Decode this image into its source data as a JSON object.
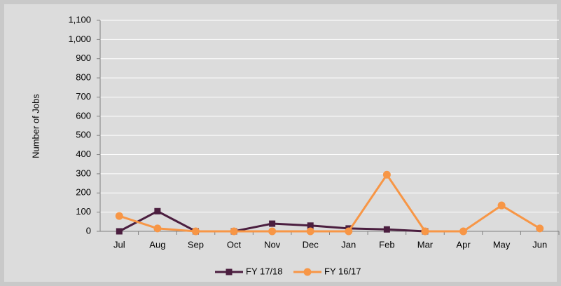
{
  "chart_data": {
    "type": "line",
    "y_label": "Number of Jobs",
    "categories": [
      "Jul",
      "Aug",
      "Sep",
      "Oct",
      "Nov",
      "Dec",
      "Jan",
      "Feb",
      "Mar",
      "Apr",
      "May",
      "Jun"
    ],
    "series": [
      {
        "name": "FY 17/18",
        "color": "#4b1e3f",
        "marker": "square",
        "values": [
          0,
          105,
          0,
          0,
          40,
          30,
          15,
          10,
          0,
          null,
          null,
          null
        ]
      },
      {
        "name": "FY 16/17",
        "color": "#f79646",
        "marker": "circle",
        "values": [
          80,
          15,
          0,
          0,
          0,
          0,
          0,
          295,
          0,
          0,
          135,
          15
        ]
      }
    ],
    "ylim": [
      0,
      1100
    ],
    "yticks": [
      0,
      100,
      200,
      300,
      400,
      500,
      600,
      700,
      800,
      900,
      {
        "value": 1000,
        "label": "1,000"
      },
      {
        "value": 1100,
        "label": "1,100"
      }
    ],
    "grid": true,
    "legend": "bottom"
  }
}
